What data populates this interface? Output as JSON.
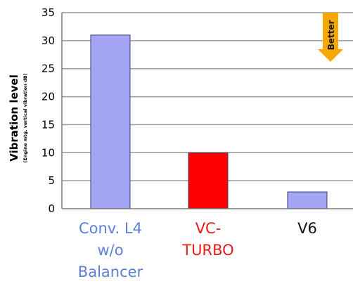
{
  "chart_data": {
    "type": "bar",
    "ylabel": "Vibration level",
    "ylabel_sub": "(Engine mtg. vertical vibration dB)",
    "ylim": [
      0,
      35
    ],
    "yticks": [
      0,
      5,
      10,
      15,
      20,
      25,
      30,
      35
    ],
    "grid": true,
    "categories": [
      "Conv. L4\nw/o\nBalancer",
      "VC-\nTURBO",
      "V6"
    ],
    "values": [
      31,
      10,
      3
    ],
    "bar_colors": [
      "#a5a5f5",
      "#ff0000",
      "#a5a5f5"
    ],
    "label_colors": [
      "#5b7fd6",
      "#e81a1a",
      "#111111"
    ],
    "annotation": {
      "text": "Better",
      "color": "#f5a800"
    }
  }
}
